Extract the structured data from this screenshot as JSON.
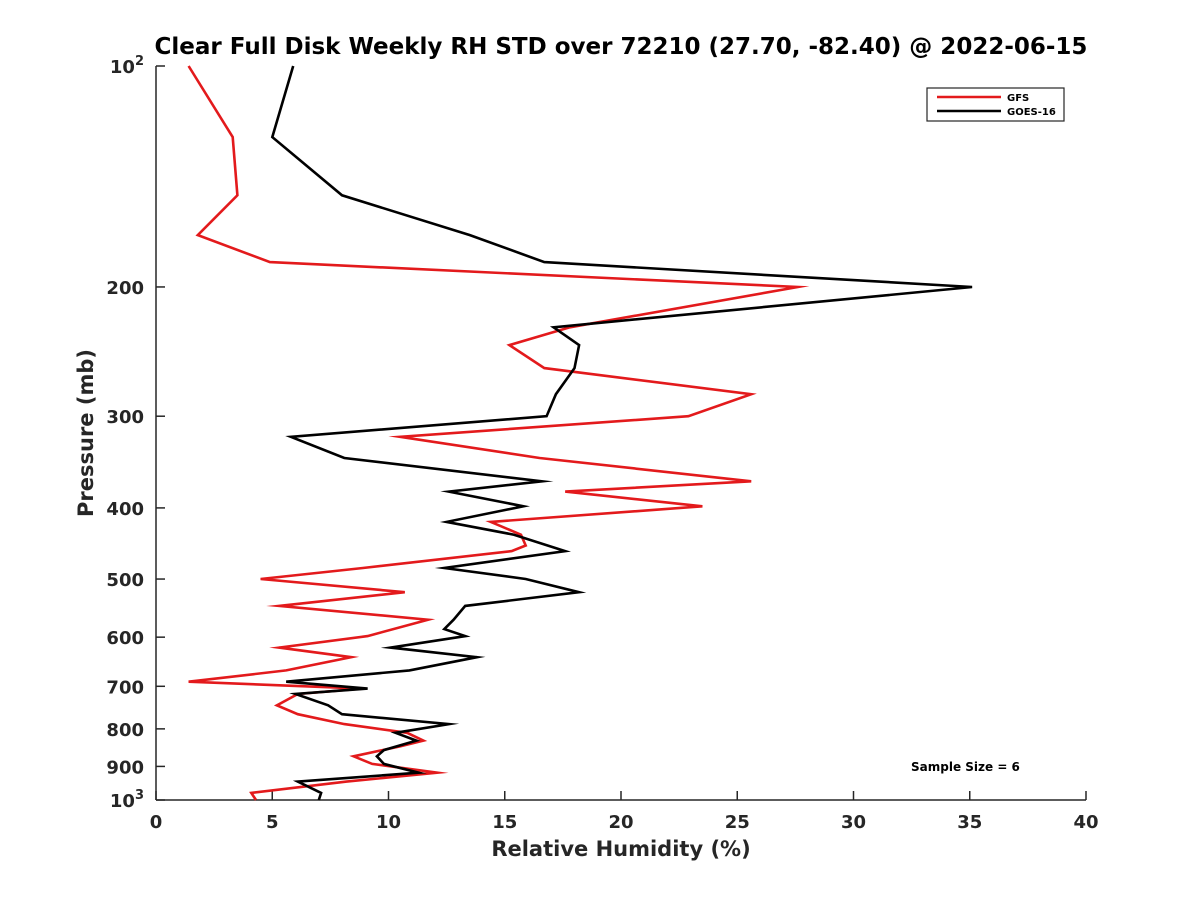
{
  "chart_data": {
    "type": "line",
    "title": "Clear Full Disk Weekly RH STD over 72210 (27.70, -82.40) @ 2022-06-15",
    "xlabel": "Relative Humidity (%)",
    "ylabel": "Pressure (mb)",
    "xlim": [
      0,
      40
    ],
    "ylim": [
      100,
      1000
    ],
    "y_scale": "log",
    "y_reversed": true,
    "x_ticks": [
      "0",
      "5",
      "10",
      "15",
      "20",
      "25",
      "30",
      "35",
      "40"
    ],
    "y_ticks": [
      {
        "value": 100,
        "label": "10",
        "sup": "2"
      },
      {
        "value": 200,
        "label": "200",
        "sup": ""
      },
      {
        "value": 300,
        "label": "300",
        "sup": ""
      },
      {
        "value": 400,
        "label": "400",
        "sup": ""
      },
      {
        "value": 500,
        "label": "500",
        "sup": ""
      },
      {
        "value": 600,
        "label": "600",
        "sup": ""
      },
      {
        "value": 700,
        "label": "700",
        "sup": ""
      },
      {
        "value": 800,
        "label": "800",
        "sup": ""
      },
      {
        "value": 900,
        "label": "900",
        "sup": ""
      },
      {
        "value": 1000,
        "label": "10",
        "sup": "3"
      }
    ],
    "legend_position": "top-right",
    "annotation": "Sample Size = 6",
    "series": [
      {
        "name": "GFS",
        "color": "#e31a1c",
        "points": [
          [
            1.4,
            100
          ],
          [
            3.3,
            125
          ],
          [
            3.5,
            150
          ],
          [
            1.8,
            170
          ],
          [
            4.9,
            185
          ],
          [
            27.6,
            200
          ],
          [
            17.8,
            227
          ],
          [
            15.2,
            240
          ],
          [
            16.7,
            258
          ],
          [
            25.6,
            280
          ],
          [
            22.9,
            300
          ],
          [
            10.5,
            320
          ],
          [
            16.5,
            342
          ],
          [
            25.6,
            368
          ],
          [
            17.6,
            380
          ],
          [
            23.5,
            398
          ],
          [
            14.4,
            418
          ],
          [
            15.7,
            435
          ],
          [
            15.9,
            450
          ],
          [
            15.3,
            458
          ],
          [
            8.9,
            483
          ],
          [
            4.5,
            500
          ],
          [
            10.7,
            521
          ],
          [
            5.3,
            544
          ],
          [
            11.7,
            568
          ],
          [
            9.1,
            598
          ],
          [
            5.3,
            620
          ],
          [
            8.4,
            639
          ],
          [
            5.6,
            666
          ],
          [
            1.4,
            690
          ],
          [
            8.9,
            705
          ],
          [
            6.1,
            717
          ],
          [
            5.2,
            743
          ],
          [
            6.1,
            764
          ],
          [
            8.1,
            788
          ],
          [
            10.8,
            810
          ],
          [
            11.5,
            830
          ],
          [
            10.5,
            845
          ],
          [
            8.5,
            872
          ],
          [
            9.3,
            893
          ],
          [
            12.1,
            918
          ],
          [
            8.2,
            944
          ],
          [
            4.1,
            978
          ],
          [
            4.3,
            1000
          ]
        ]
      },
      {
        "name": "GOES-16",
        "color": "#000000",
        "points": [
          [
            5.9,
            100
          ],
          [
            5.0,
            125
          ],
          [
            8.0,
            150
          ],
          [
            13.5,
            170
          ],
          [
            16.7,
            185
          ],
          [
            35.1,
            200
          ],
          [
            17.1,
            227
          ],
          [
            18.2,
            240
          ],
          [
            18.0,
            258
          ],
          [
            17.2,
            280
          ],
          [
            16.8,
            300
          ],
          [
            5.8,
            320
          ],
          [
            8.1,
            342
          ],
          [
            16.6,
            368
          ],
          [
            12.6,
            380
          ],
          [
            15.8,
            398
          ],
          [
            12.5,
            418
          ],
          [
            15.4,
            435
          ],
          [
            17.6,
            458
          ],
          [
            12.4,
            483
          ],
          [
            15.9,
            500
          ],
          [
            18.2,
            521
          ],
          [
            13.3,
            544
          ],
          [
            12.8,
            568
          ],
          [
            12.4,
            585
          ],
          [
            13.3,
            598
          ],
          [
            10.1,
            620
          ],
          [
            13.8,
            639
          ],
          [
            10.9,
            666
          ],
          [
            5.6,
            690
          ],
          [
            9.1,
            705
          ],
          [
            6.0,
            717
          ],
          [
            7.4,
            743
          ],
          [
            8.0,
            764
          ],
          [
            12.6,
            788
          ],
          [
            10.3,
            810
          ],
          [
            11.2,
            830
          ],
          [
            9.8,
            855
          ],
          [
            9.5,
            872
          ],
          [
            9.8,
            893
          ],
          [
            11.3,
            918
          ],
          [
            6.1,
            944
          ],
          [
            7.1,
            978
          ],
          [
            7.0,
            1000
          ]
        ]
      }
    ]
  }
}
